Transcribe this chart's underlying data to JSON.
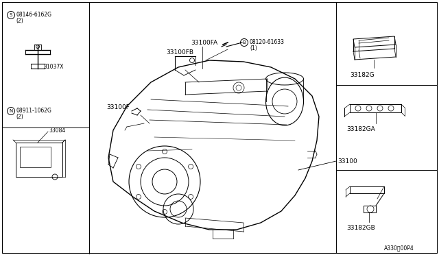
{
  "bg_color": "#ffffff",
  "line_color": "#000000",
  "part_labels": {
    "main_assembly": "33100",
    "fa": "33100FA",
    "fb": "33100FB",
    "f": "33100F",
    "bolt": "08120-61633",
    "bolt_qty": "(1)",
    "bolt_sym": "B",
    "screw": "08146-6162G",
    "screw_qty": "(2)",
    "screw_sym": "S",
    "bracket": "31037X",
    "module": "33084",
    "nut": "08911-1062G",
    "nut_qty": "(2)",
    "nut_sym": "N",
    "bracket_g": "33182G",
    "bracket_ga": "33182GA",
    "bracket_gb": "33182GB"
  },
  "footer": "A330、00P4",
  "font_size_label": 6.5,
  "font_size_small": 5.5,
  "font_size_footer": 5.5
}
